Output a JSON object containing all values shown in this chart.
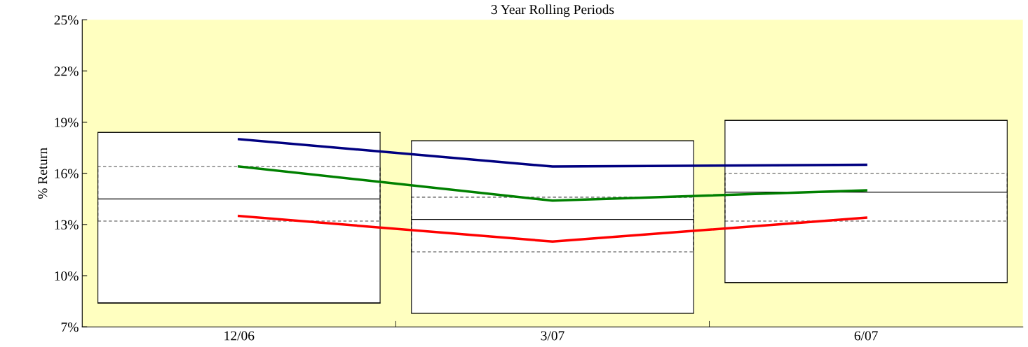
{
  "chart_data": {
    "type": "box",
    "title": "3 Year Rolling Periods",
    "ylabel": "% Return",
    "categories": [
      "12/06",
      "3/07",
      "6/07"
    ],
    "boxes": [
      {
        "low": 8.4,
        "q1": 13.2,
        "median": 14.5,
        "q3": 16.4,
        "high": 18.4
      },
      {
        "low": 7.8,
        "q1": 11.4,
        "median": 13.3,
        "q3": 14.6,
        "high": 17.9
      },
      {
        "low": 9.6,
        "q1": 13.2,
        "median": 14.9,
        "q3": 16.0,
        "high": 19.1
      }
    ],
    "series": [
      {
        "type": "line",
        "color": "#000080",
        "values": [
          18.0,
          16.4,
          16.5
        ]
      },
      {
        "type": "line",
        "color": "#008000",
        "values": [
          16.4,
          14.4,
          15.0
        ]
      },
      {
        "type": "line",
        "color": "#ff0000",
        "values": [
          13.5,
          12.0,
          13.4
        ]
      }
    ],
    "ylim": [
      7,
      25
    ],
    "yticks": [
      {
        "value": 7,
        "label": "7%"
      },
      {
        "value": 10,
        "label": "10%"
      },
      {
        "value": 13,
        "label": "13%"
      },
      {
        "value": 16,
        "label": "16%"
      },
      {
        "value": 19,
        "label": "19%"
      },
      {
        "value": 22,
        "label": "22%"
      },
      {
        "value": 25,
        "label": "25%"
      }
    ],
    "grid": false,
    "legend": false,
    "marker": "none",
    "line_style": "solid"
  }
}
